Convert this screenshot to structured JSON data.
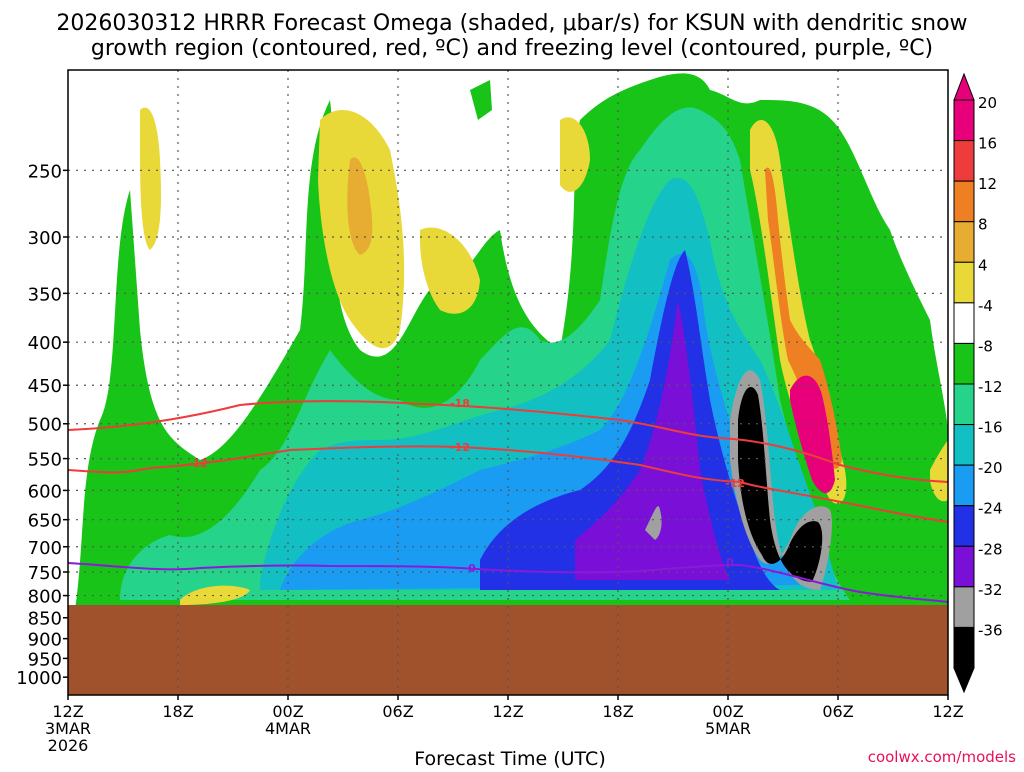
{
  "chart_data": {
    "type": "contour",
    "title_line1": "2026030312 HRRR Forecast Omega (shaded, μbar/s) for KSUN with dendritic snow",
    "title_line2": "growth region (contoured, red, ºC) and freezing level (contoured, purple, ºC)",
    "xlabel": "Forecast Time (UTC)",
    "credit": "coolwx.com/models",
    "y_ticks": [
      "250",
      "300",
      "350",
      "400",
      "450",
      "500",
      "550",
      "600",
      "650",
      "700",
      "750",
      "800",
      "850",
      "900",
      "950",
      "1000"
    ],
    "x_ticks": [
      {
        "l1": "12Z",
        "l2": "3MAR",
        "l3": "2026"
      },
      {
        "l1": "18Z",
        "l2": "",
        "l3": ""
      },
      {
        "l1": "00Z",
        "l2": "4MAR",
        "l3": ""
      },
      {
        "l1": "06Z",
        "l2": "",
        "l3": ""
      },
      {
        "l1": "12Z",
        "l2": "",
        "l3": ""
      },
      {
        "l1": "18Z",
        "l2": "",
        "l3": ""
      },
      {
        "l1": "00Z",
        "l2": "5MAR",
        "l3": ""
      },
      {
        "l1": "06Z",
        "l2": "",
        "l3": ""
      },
      {
        "l1": "12Z",
        "l2": "",
        "l3": ""
      }
    ],
    "colorbar_labels": [
      "20",
      "16",
      "12",
      "8",
      "4",
      "-4",
      "-8",
      "-12",
      "-16",
      "-20",
      "-24",
      "-28",
      "-32",
      "-36"
    ],
    "colorbar_colors": [
      "#e8007a",
      "#ee3b3b",
      "#ee7f22",
      "#e6ad32",
      "#e8d838",
      "#ffffff",
      "#17c417",
      "#25d38a",
      "#12c0c4",
      "#1a9cf2",
      "#2230e6",
      "#7a10d8",
      "#a0a0a0",
      "#000000"
    ],
    "contour_labels": {
      "dgz_warm": "-12",
      "dgz_cold": "-18",
      "freezing": "0"
    },
    "ground_level_hpa": 835
  },
  "colors": {
    "ground": "#a0522d",
    "dgz": "#ee3b3b",
    "freezing": "#8a1ad8"
  }
}
